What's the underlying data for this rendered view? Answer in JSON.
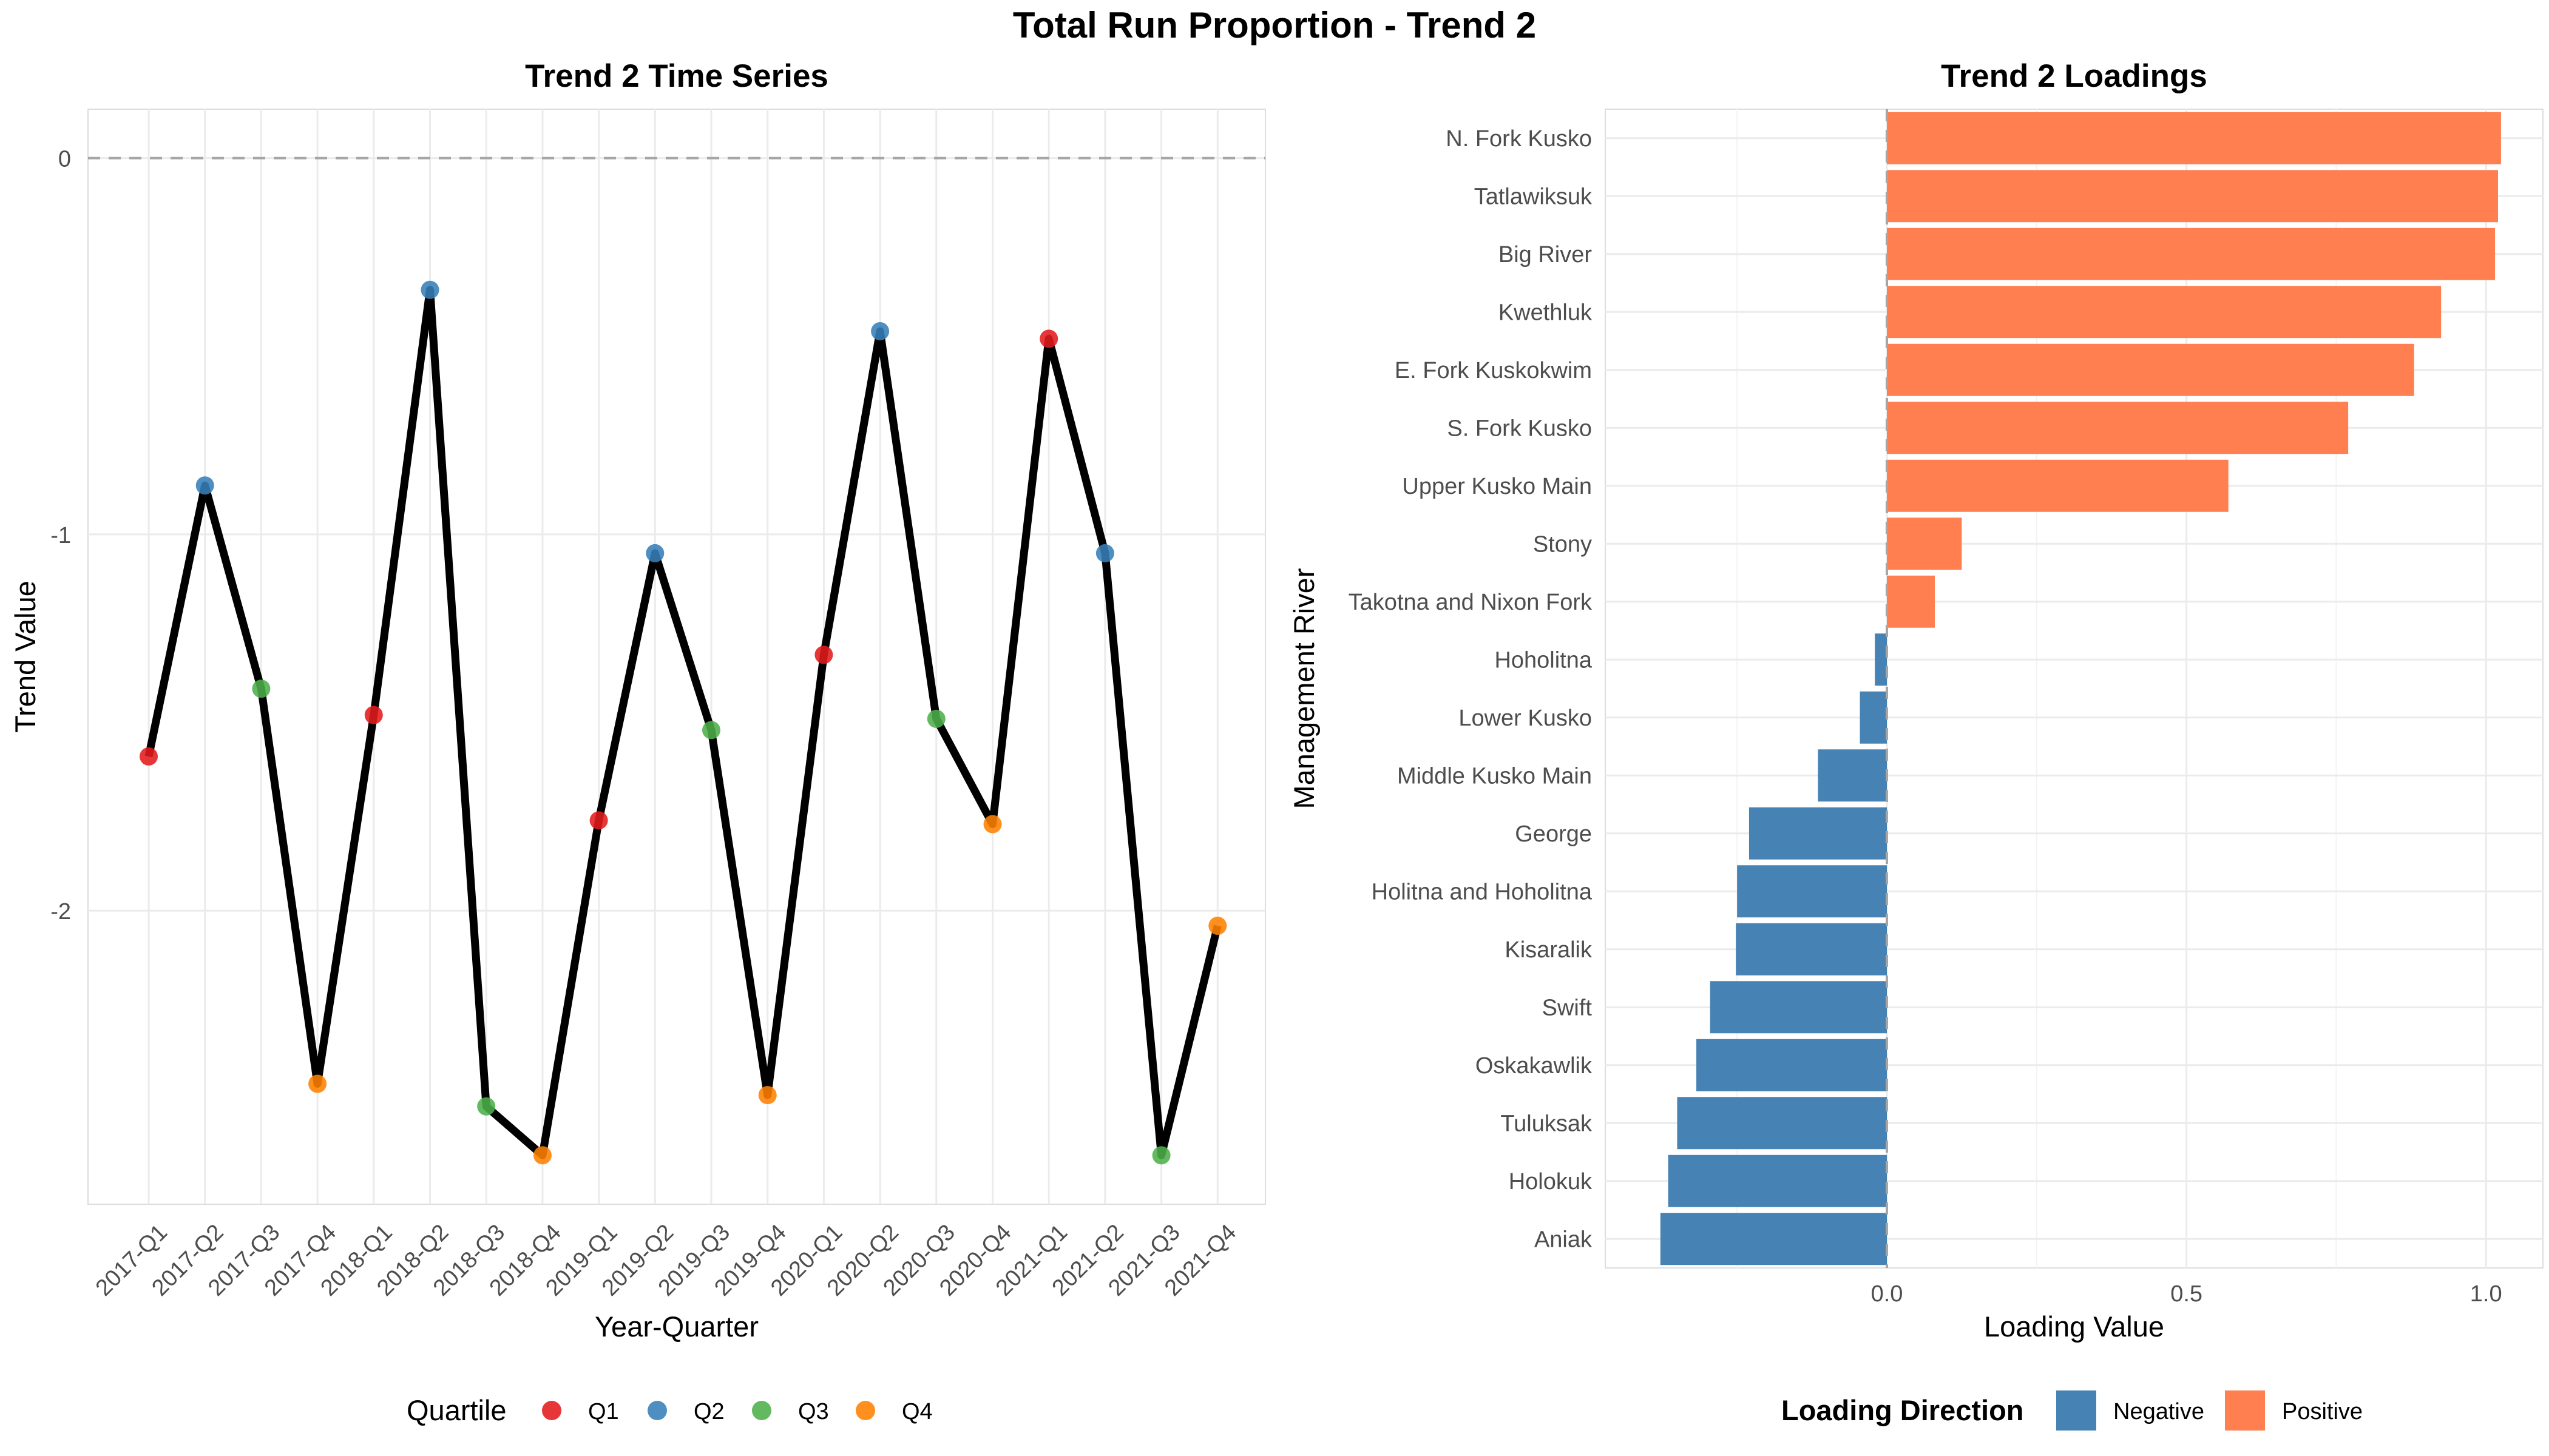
{
  "title": "Total Run Proportion - Trend 2",
  "chart_data": [
    {
      "type": "line",
      "title": "Trend 2 Time Series",
      "xlabel": "Year-Quarter",
      "ylabel": "Trend Value",
      "categories": [
        "2017-Q1",
        "2017-Q2",
        "2017-Q3",
        "2017-Q4",
        "2018-Q1",
        "2018-Q2",
        "2018-Q3",
        "2018-Q4",
        "2019-Q1",
        "2019-Q2",
        "2019-Q3",
        "2019-Q4",
        "2020-Q1",
        "2020-Q2",
        "2020-Q3",
        "2020-Q4",
        "2021-Q1",
        "2021-Q2",
        "2021-Q3",
        "2021-Q4"
      ],
      "values": [
        -1.59,
        -0.87,
        -1.41,
        -2.46,
        -1.48,
        -0.35,
        -2.52,
        -2.65,
        -1.76,
        -1.05,
        -1.52,
        -2.49,
        -1.32,
        -0.46,
        -1.49,
        -1.77,
        -0.48,
        -1.05,
        -2.65,
        -2.04
      ],
      "quartiles": [
        "Q1",
        "Q2",
        "Q3",
        "Q4",
        "Q1",
        "Q2",
        "Q3",
        "Q4",
        "Q1",
        "Q2",
        "Q3",
        "Q4",
        "Q1",
        "Q2",
        "Q3",
        "Q4",
        "Q1",
        "Q2",
        "Q3",
        "Q4"
      ],
      "ylim": [
        -2.78,
        0.13
      ],
      "yticks": [
        0,
        -1,
        -2
      ],
      "reference_line": 0,
      "grid": true,
      "legend": {
        "title": "Quartile",
        "position": "bottom",
        "items": [
          {
            "label": "Q1",
            "color": "#E41A1C"
          },
          {
            "label": "Q2",
            "color": "#377EB8"
          },
          {
            "label": "Q3",
            "color": "#4DAF4A"
          },
          {
            "label": "Q4",
            "color": "#FF7F00"
          }
        ]
      },
      "line_color": "#000000"
    },
    {
      "type": "bar",
      "orientation": "horizontal",
      "title": "Trend 2 Loadings",
      "xlabel": "Loading Value",
      "ylabel": "Management River",
      "categories": [
        "N. Fork Kusko",
        "Tatlawiksuk",
        "Big River",
        "Kwethluk",
        "E. Fork Kuskokwim",
        "S. Fork Kusko",
        "Upper Kusko Main",
        "Stony",
        "Takotna and Nixon Fork",
        "Hoholitna",
        "Lower Kusko",
        "Middle Kusko Main",
        "George",
        "Holitna and Hoholitna",
        "Kisaralik",
        "Swift",
        "Oskakawlik",
        "Tuluksak",
        "Holokuk",
        "Aniak"
      ],
      "values": [
        1.025,
        1.02,
        1.015,
        0.925,
        0.88,
        0.77,
        0.57,
        0.125,
        0.08,
        -0.02,
        -0.045,
        -0.115,
        -0.23,
        -0.25,
        -0.252,
        -0.295,
        -0.318,
        -0.35,
        -0.365,
        -0.378
      ],
      "xlim": [
        -0.47,
        1.095
      ],
      "xticks": [
        0.0,
        0.5,
        1.0
      ],
      "xtick_labels": [
        "0.0",
        "0.5",
        "1.0"
      ],
      "reference_line": 0,
      "grid": true,
      "legend": {
        "title": "Loading Direction",
        "position": "bottom",
        "items": [
          {
            "label": "Negative",
            "color": "#4682B4"
          },
          {
            "label": "Positive",
            "color": "#FF7F50"
          }
        ]
      }
    }
  ]
}
